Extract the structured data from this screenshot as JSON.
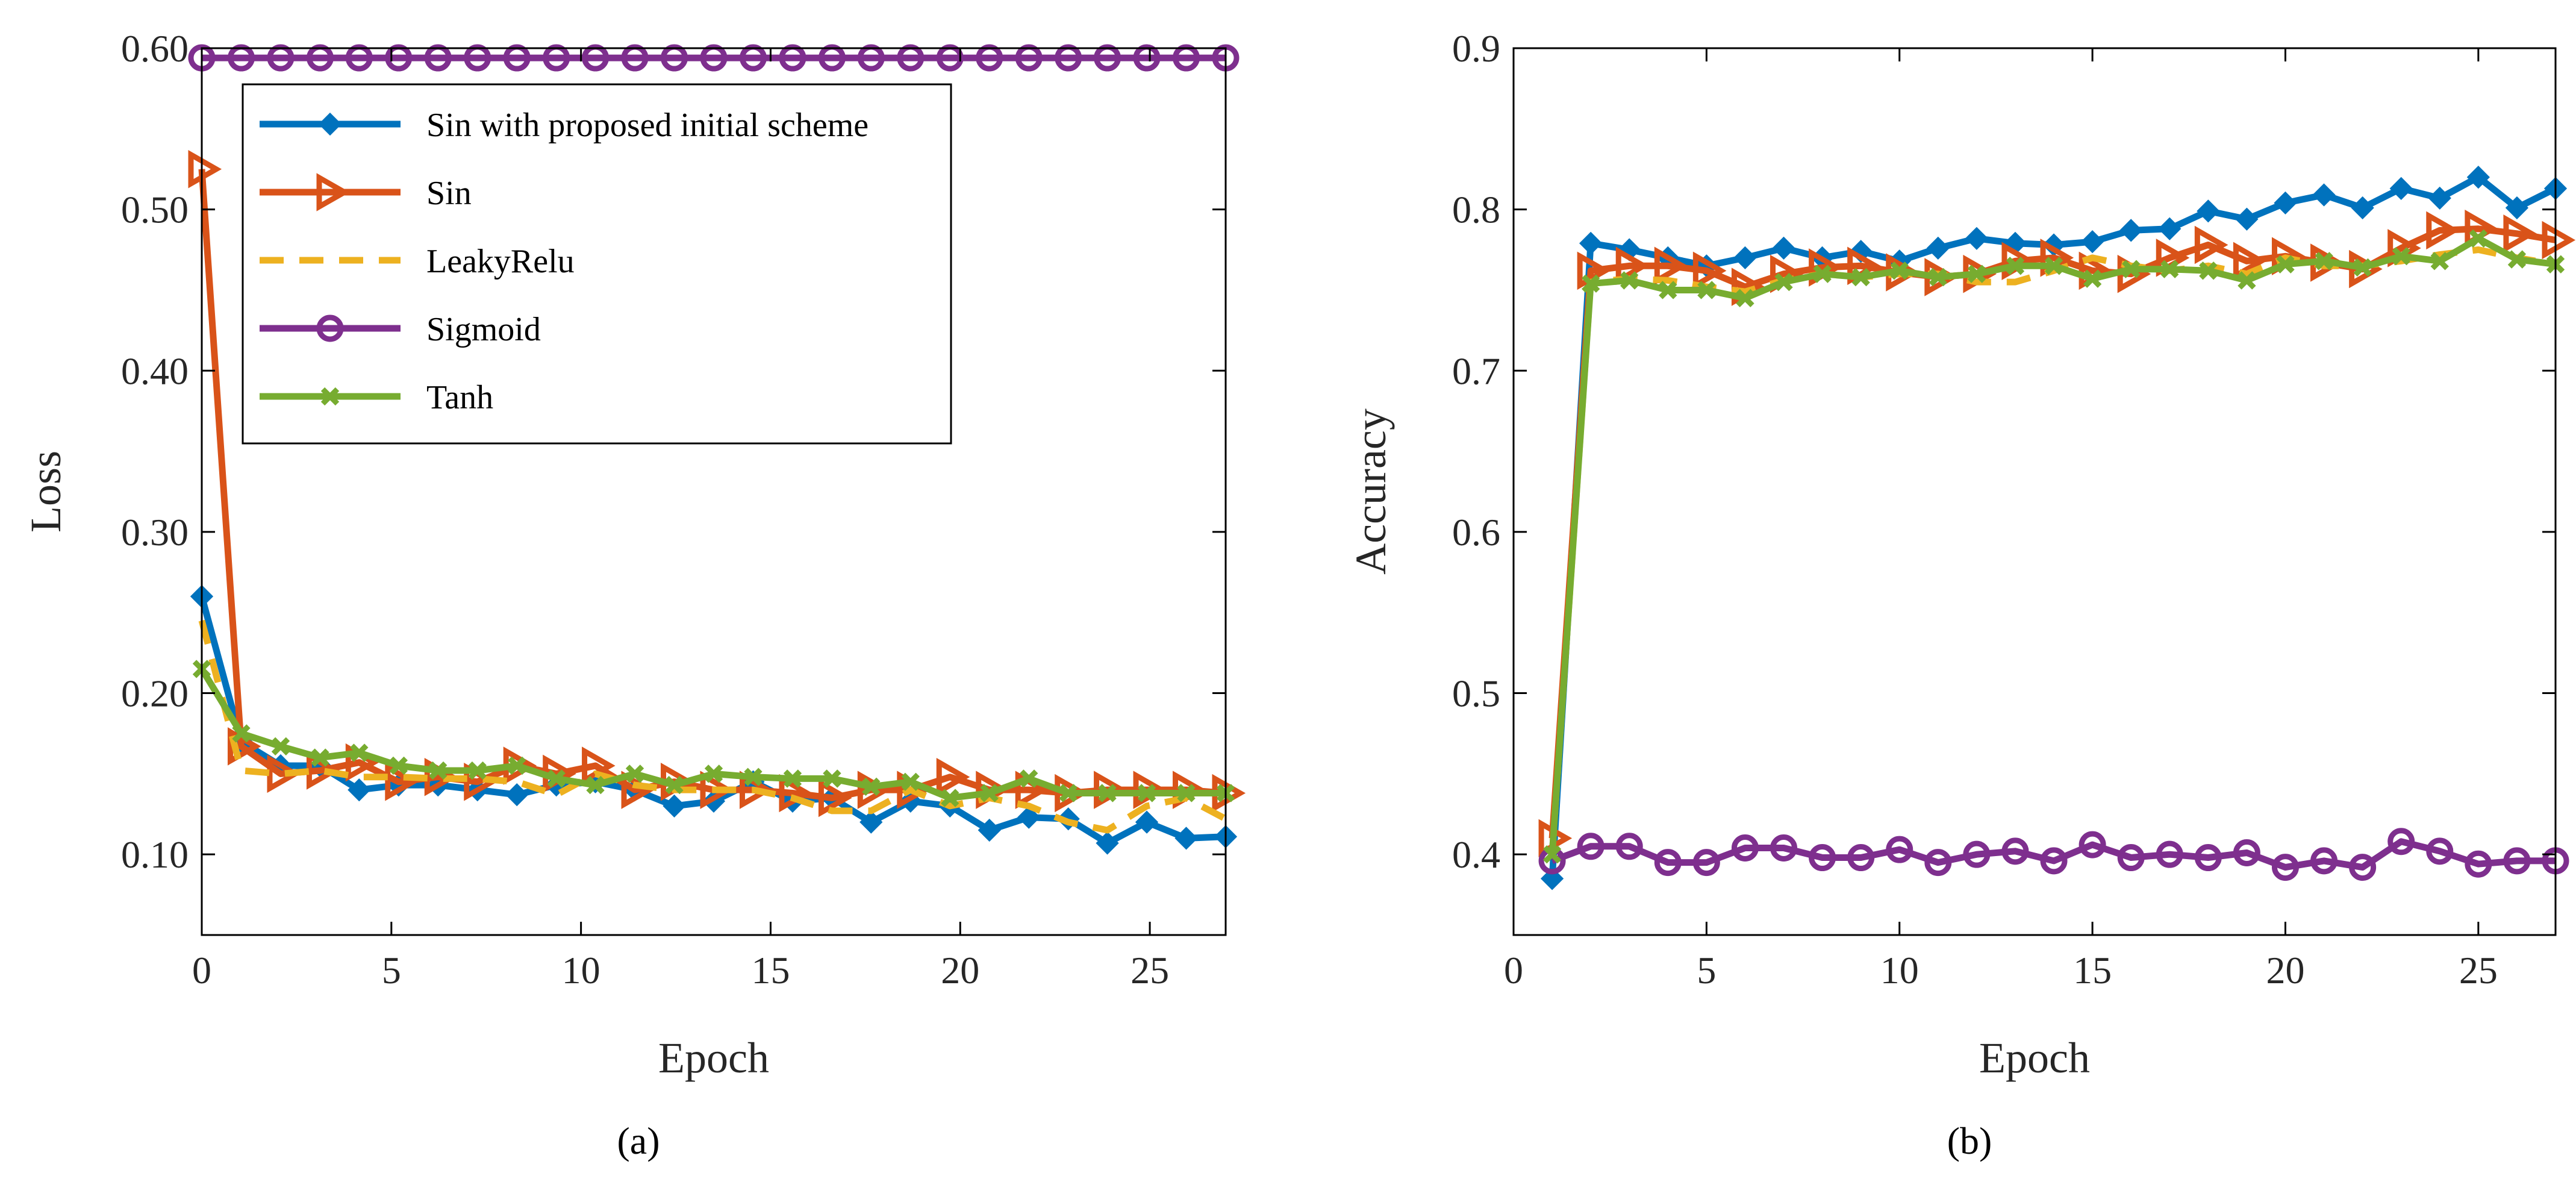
{
  "chart_data": [
    {
      "type": "line",
      "panel": "a",
      "caption": "(a)",
      "xlabel": "Epoch",
      "ylabel": "Loss",
      "xlim": [
        0,
        27
      ],
      "ylim": [
        0.05,
        0.6
      ],
      "xticks": [
        0,
        5,
        10,
        15,
        20,
        25
      ],
      "xtick_labels": [
        "0",
        "5",
        "10",
        "15",
        "20",
        "25"
      ],
      "yticks": [
        0.1,
        0.2,
        0.3,
        0.4,
        0.5,
        0.6
      ],
      "ytick_labels": [
        "0.10",
        "0.20",
        "0.30",
        "0.40",
        "0.50",
        "0.60"
      ],
      "grid": false,
      "legend": "top-right",
      "x": [
        0,
        1.04,
        2.08,
        3.12,
        4.15,
        5.19,
        6.23,
        7.27,
        8.31,
        9.35,
        10.38,
        11.42,
        12.46,
        13.5,
        14.54,
        15.58,
        16.62,
        17.65,
        18.69,
        19.73,
        20.77,
        21.81,
        22.85,
        23.88,
        24.92,
        25.96,
        27
      ],
      "series": [
        {
          "name": "Sin with proposed initial scheme",
          "color": "#0072BD",
          "marker": "diamond",
          "dash": "solid",
          "values": [
            0.26,
            0.17,
            0.155,
            0.155,
            0.14,
            0.143,
            0.143,
            0.14,
            0.137,
            0.143,
            0.145,
            0.14,
            0.13,
            0.133,
            0.145,
            0.133,
            0.135,
            0.12,
            0.133,
            0.13,
            0.115,
            0.123,
            0.122,
            0.107,
            0.12,
            0.11,
            0.111
          ]
        },
        {
          "name": "Sin",
          "color": "#D95319",
          "marker": "triangle-right",
          "dash": "solid",
          "values": [
            0.525,
            0.167,
            0.15,
            0.152,
            0.157,
            0.145,
            0.148,
            0.145,
            0.155,
            0.15,
            0.155,
            0.14,
            0.145,
            0.14,
            0.14,
            0.138,
            0.135,
            0.14,
            0.14,
            0.148,
            0.14,
            0.14,
            0.138,
            0.14,
            0.14,
            0.14,
            0.138
          ]
        },
        {
          "name": "LeakyRelu",
          "color": "#EDB120",
          "marker": "none",
          "dash": "dashed",
          "values": [
            0.245,
            0.152,
            0.15,
            0.152,
            0.148,
            0.148,
            0.147,
            0.147,
            0.145,
            0.137,
            0.15,
            0.143,
            0.14,
            0.14,
            0.14,
            0.135,
            0.127,
            0.127,
            0.14,
            0.13,
            0.135,
            0.13,
            0.12,
            0.115,
            0.13,
            0.135,
            0.122
          ]
        },
        {
          "name": "Sigmoid",
          "color": "#7E2F8E",
          "marker": "circle",
          "dash": "solid",
          "values": [
            0.594,
            0.594,
            0.594,
            0.594,
            0.594,
            0.594,
            0.594,
            0.594,
            0.594,
            0.594,
            0.594,
            0.594,
            0.594,
            0.594,
            0.594,
            0.594,
            0.594,
            0.594,
            0.594,
            0.594,
            0.594,
            0.594,
            0.594,
            0.594,
            0.594,
            0.594,
            0.594
          ]
        },
        {
          "name": "Tanh",
          "color": "#77AC30",
          "marker": "x",
          "dash": "solid",
          "values": [
            0.215,
            0.175,
            0.167,
            0.16,
            0.163,
            0.155,
            0.152,
            0.152,
            0.155,
            0.147,
            0.143,
            0.15,
            0.143,
            0.15,
            0.148,
            0.147,
            0.147,
            0.142,
            0.145,
            0.135,
            0.138,
            0.147,
            0.138,
            0.138,
            0.138,
            0.138,
            0.138
          ]
        }
      ]
    },
    {
      "type": "line",
      "panel": "b",
      "caption": "(b)",
      "xlabel": "Epoch",
      "ylabel": "Accuracy",
      "xlim": [
        0,
        27
      ],
      "ylim": [
        0.35,
        0.9
      ],
      "xticks": [
        0,
        5,
        10,
        15,
        20,
        25
      ],
      "xtick_labels": [
        "0",
        "5",
        "10",
        "15",
        "20",
        "25"
      ],
      "yticks": [
        0.4,
        0.5,
        0.6,
        0.7,
        0.8,
        0.9
      ],
      "ytick_labels": [
        "0.4",
        "0.5",
        "0.6",
        "0.7",
        "0.8",
        "0.9"
      ],
      "grid": false,
      "x": [
        1,
        2,
        3,
        4,
        5,
        6,
        7,
        8,
        9,
        10,
        11,
        12,
        13,
        14,
        15,
        16,
        17,
        18,
        19,
        20,
        21,
        22,
        23,
        24,
        25,
        26,
        27
      ],
      "series": [
        {
          "name": "Sin with proposed initial scheme",
          "color": "#0072BD",
          "marker": "diamond",
          "dash": "solid",
          "values": [
            0.385,
            0.779,
            0.775,
            0.77,
            0.765,
            0.77,
            0.776,
            0.77,
            0.774,
            0.768,
            0.776,
            0.782,
            0.779,
            0.778,
            0.78,
            0.787,
            0.788,
            0.799,
            0.794,
            0.804,
            0.809,
            0.801,
            0.813,
            0.807,
            0.82,
            0.801,
            0.813
          ]
        },
        {
          "name": "Sin",
          "color": "#D95319",
          "marker": "triangle-right",
          "dash": "solid",
          "values": [
            0.41,
            0.762,
            0.765,
            0.765,
            0.762,
            0.752,
            0.76,
            0.764,
            0.765,
            0.761,
            0.758,
            0.76,
            0.768,
            0.77,
            0.762,
            0.76,
            0.77,
            0.778,
            0.768,
            0.771,
            0.767,
            0.763,
            0.776,
            0.787,
            0.788,
            0.785,
            0.781
          ]
        },
        {
          "name": "LeakyRelu",
          "color": "#EDB120",
          "marker": "none",
          "dash": "dashed",
          "values": [
            0.4,
            0.755,
            0.757,
            0.756,
            0.752,
            0.749,
            0.756,
            0.76,
            0.758,
            0.76,
            0.76,
            0.755,
            0.755,
            0.762,
            0.77,
            0.765,
            0.762,
            0.765,
            0.76,
            0.77,
            0.765,
            0.765,
            0.768,
            0.772,
            0.775,
            0.77,
            0.766
          ]
        },
        {
          "name": "Sigmoid",
          "color": "#7E2F8E",
          "marker": "circle",
          "dash": "solid",
          "values": [
            0.396,
            0.405,
            0.405,
            0.395,
            0.395,
            0.404,
            0.404,
            0.398,
            0.398,
            0.403,
            0.395,
            0.4,
            0.402,
            0.396,
            0.406,
            0.398,
            0.4,
            0.398,
            0.401,
            0.392,
            0.396,
            0.392,
            0.408,
            0.402,
            0.394,
            0.396,
            0.396
          ]
        },
        {
          "name": "Tanh",
          "color": "#77AC30",
          "marker": "x",
          "dash": "solid",
          "values": [
            0.4,
            0.754,
            0.756,
            0.75,
            0.75,
            0.745,
            0.755,
            0.76,
            0.758,
            0.762,
            0.758,
            0.76,
            0.765,
            0.765,
            0.757,
            0.763,
            0.763,
            0.762,
            0.756,
            0.766,
            0.768,
            0.764,
            0.771,
            0.768,
            0.782,
            0.769,
            0.766
          ]
        }
      ]
    }
  ]
}
